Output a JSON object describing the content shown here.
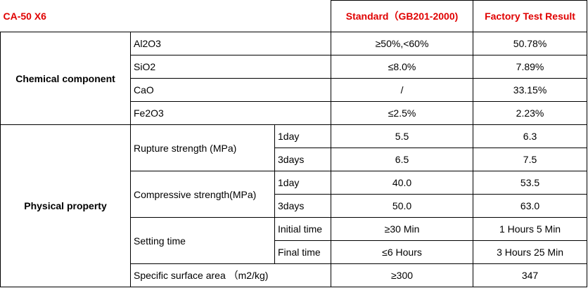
{
  "header": {
    "product": "CA-50 X6",
    "standard": "Standard（GB201-2000)",
    "result": "Factory Test Result"
  },
  "chemical": {
    "label": "Chemical component",
    "rows": [
      [
        "Al2O3",
        "≥50%,<60%",
        "50.78%"
      ],
      [
        "SiO2",
        "≤8.0%",
        "7.89%"
      ],
      [
        "CaO",
        "/",
        "33.15%"
      ],
      [
        "Fe2O3",
        "≤2.5%",
        "2.23%"
      ]
    ]
  },
  "physical": {
    "label": "Physical property",
    "groups": [
      {
        "name": "Rupture strength (MPa)",
        "rows": [
          [
            "1day",
            "5.5",
            "6.3"
          ],
          [
            "3days",
            "6.5",
            "7.5"
          ]
        ]
      },
      {
        "name": "Compressive strength(MPa)",
        "rows": [
          [
            "1day",
            "40.0",
            "53.5"
          ],
          [
            "3days",
            "50.0",
            "63.0"
          ]
        ]
      },
      {
        "name": "Setting time",
        "rows": [
          [
            "Initial time",
            "≥30 Min",
            "1 Hours 5 Min"
          ],
          [
            "Final time",
            "≤6 Hours",
            "3 Hours 25 Min"
          ]
        ]
      }
    ],
    "surface": [
      "Specific surface area （m2/kg)",
      "≥300",
      "347"
    ]
  }
}
